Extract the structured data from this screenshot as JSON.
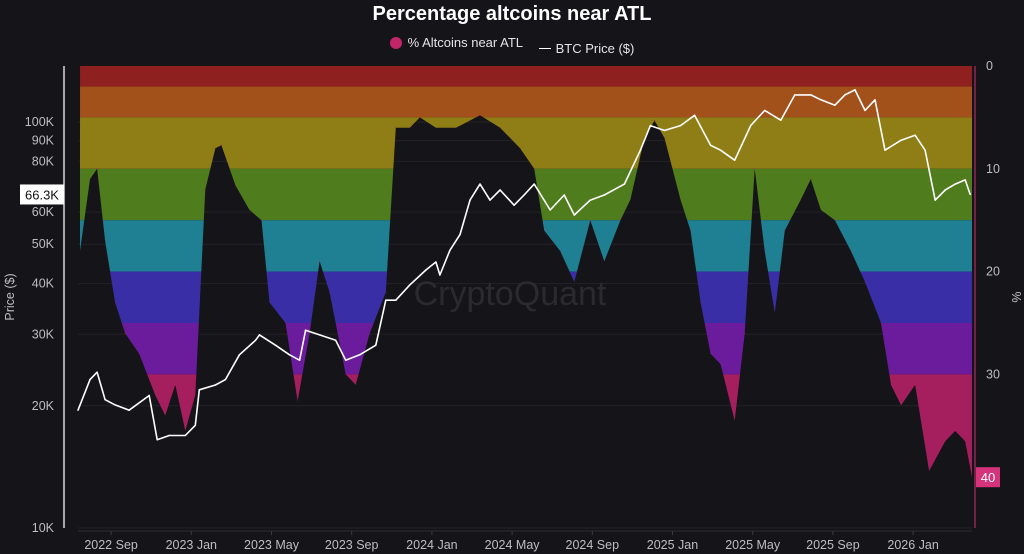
{
  "chart_data": {
    "type": "line",
    "title": "Percentage altcoins near ATL",
    "legend": [
      {
        "label": "% Altcoins near ATL",
        "color": "#c2256a",
        "marker": "dot"
      },
      {
        "label": "BTC Price ($)",
        "color": "#ffffff",
        "marker": "line"
      }
    ],
    "legend_placement": "top-center",
    "x_unit": "months since 2022 Jul",
    "xlim": [
      0.35,
      44.95
    ],
    "x_ticks": [
      {
        "t": 2,
        "label": "2022 Sep"
      },
      {
        "t": 6,
        "label": "2023 Jan"
      },
      {
        "t": 10,
        "label": "2023 May"
      },
      {
        "t": 14,
        "label": "2023 Sep"
      },
      {
        "t": 18,
        "label": "2024 Jan"
      },
      {
        "t": 22,
        "label": "2024 May"
      },
      {
        "t": 26,
        "label": "2024 Sep"
      },
      {
        "t": 30,
        "label": "2025 Jan"
      },
      {
        "t": 34,
        "label": "2025 May"
      },
      {
        "t": 38,
        "label": "2025 Sep"
      },
      {
        "t": 42,
        "label": "2026 Jan"
      }
    ],
    "ylabel_left": "Price ($)",
    "y_left_scale": "log",
    "y_left_range_k": [
      10,
      130
    ],
    "y_left_ticks": [
      {
        "v": 10,
        "label": "10K"
      },
      {
        "v": 20,
        "label": "20K"
      },
      {
        "v": 30,
        "label": "30K"
      },
      {
        "v": 40,
        "label": "40K"
      },
      {
        "v": 50,
        "label": "50K"
      },
      {
        "v": 60,
        "label": "60K"
      },
      {
        "v": 80,
        "label": "80K"
      },
      {
        "v": 90,
        "label": "90K"
      },
      {
        "v": 100,
        "label": "100K"
      }
    ],
    "ylabel_right": "%",
    "y_right_range": [
      0,
      45
    ],
    "y_right_inverted": true,
    "y_right_ticks": [
      {
        "v": 0,
        "label": "0"
      },
      {
        "v": 10,
        "label": "10"
      },
      {
        "v": 20,
        "label": "20"
      },
      {
        "v": 30,
        "label": "30"
      }
    ],
    "bands": [
      {
        "from": 0,
        "to": 2,
        "color": "#8e2020"
      },
      {
        "from": 2,
        "to": 5,
        "color": "#a2511b"
      },
      {
        "from": 5,
        "to": 10,
        "color": "#8f7d16"
      },
      {
        "from": 10,
        "to": 15,
        "color": "#4f7c1c"
      },
      {
        "from": 15,
        "to": 20,
        "color": "#1f7f93"
      },
      {
        "from": 20,
        "to": 25,
        "color": "#3a2ea6"
      },
      {
        "from": 25,
        "to": 30,
        "color": "#6b1c9d"
      },
      {
        "from": 30,
        "to": 45,
        "color": "#a51e5e"
      }
    ],
    "current_price_label": "66.3K",
    "current_pct_label": "40",
    "watermark": "CryptoQuant",
    "series": [
      {
        "name": "% Altcoins near ATL",
        "axis": "right",
        "t": [
          0.45,
          0.95,
          1.3,
          1.7,
          2.2,
          2.7,
          3.4,
          4.2,
          4.7,
          5.2,
          5.7,
          6.2,
          6.7,
          7.2,
          7.5,
          8.2,
          8.9,
          9.5,
          9.9,
          10.7,
          11.3,
          11.9,
          12.4,
          12.9,
          13.7,
          14.2,
          14.9,
          15.7,
          16.2,
          16.9,
          17.4,
          18.2,
          19.2,
          19.9,
          20.4,
          21.4,
          22.4,
          23.1,
          23.6,
          24.4,
          25.1,
          25.9,
          26.6,
          27.4,
          27.9,
          28.6,
          29.1,
          29.6,
          30.4,
          30.9,
          31.4,
          31.9,
          32.4,
          33.1,
          33.6,
          34.1,
          34.6,
          35.1,
          35.6,
          36.4,
          36.9,
          37.4,
          38.1,
          38.9,
          39.6,
          40.4,
          40.9,
          41.4,
          42.1,
          42.8,
          43.6,
          44.1,
          44.6,
          44.94
        ],
        "values": [
          18,
          11,
          10,
          17,
          23,
          26,
          28,
          32,
          34,
          31,
          35.5,
          32,
          12,
          8,
          7.7,
          11.6,
          14,
          15,
          23,
          25,
          32.6,
          26,
          19,
          22,
          30,
          31,
          26,
          22,
          6,
          6,
          5,
          6,
          6,
          5.3,
          4.8,
          6,
          8,
          10,
          16,
          18,
          21,
          15,
          19,
          15,
          13,
          7,
          5.3,
          7,
          13,
          16,
          23,
          28,
          29,
          34.5,
          26,
          10,
          18,
          24,
          16,
          13,
          11,
          14,
          15,
          18,
          21,
          25,
          31,
          33,
          31,
          39.4,
          36.5,
          35.5,
          36.5,
          40
        ]
      },
      {
        "name": "BTC Price ($)",
        "axis": "left",
        "unit": "K USD",
        "t": [
          0.35,
          0.95,
          1.3,
          1.7,
          2.2,
          2.9,
          3.9,
          4.3,
          4.9,
          5.7,
          6.2,
          6.4,
          7.2,
          7.7,
          8.4,
          9.2,
          9.4,
          10.2,
          10.9,
          11.4,
          11.7,
          12.4,
          13.2,
          13.7,
          14.4,
          15.2,
          15.7,
          16.2,
          16.9,
          17.7,
          18.2,
          18.4,
          18.9,
          19.4,
          19.9,
          20.4,
          20.9,
          21.4,
          22.1,
          22.6,
          23.1,
          23.9,
          24.6,
          25.1,
          25.9,
          26.6,
          27.6,
          28.4,
          28.9,
          29.6,
          30.4,
          31.1,
          31.9,
          32.4,
          33.1,
          33.9,
          34.6,
          35.4,
          36.1,
          36.9,
          37.4,
          38.1,
          38.6,
          39.1,
          39.6,
          40.1,
          40.6,
          41.4,
          42.1,
          42.6,
          43.1,
          43.6,
          44.1,
          44.6,
          44.85
        ],
        "values": [
          19.5,
          23.2,
          24.2,
          20.7,
          20.1,
          19.5,
          21.2,
          16.5,
          16.9,
          16.9,
          17.9,
          21.9,
          22.5,
          23.2,
          26.7,
          29,
          29.9,
          28.2,
          26.7,
          25.9,
          30.7,
          29.9,
          29,
          25.9,
          26.7,
          28.2,
          36.4,
          36.4,
          39.7,
          43.2,
          45.2,
          42,
          48.3,
          52.8,
          64.2,
          70.3,
          64.2,
          68,
          62.4,
          66.1,
          70.3,
          60.7,
          66.1,
          59,
          64.2,
          66.1,
          70.3,
          85.2,
          98,
          95.3,
          98,
          103.9,
          87.6,
          85.2,
          80.5,
          98,
          106.8,
          101,
          116.6,
          116.6,
          113.4,
          110,
          116.6,
          120,
          106.8,
          113.4,
          85.2,
          90.2,
          92.8,
          85.2,
          64.2,
          68,
          70.3,
          72,
          66.3
        ]
      }
    ]
  }
}
